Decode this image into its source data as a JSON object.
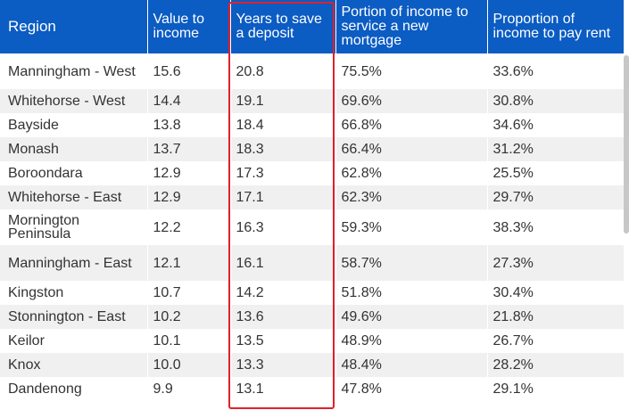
{
  "table": {
    "headers": [
      "Region",
      "Value to income",
      "Years to save a deposit",
      "Portion of income to service a new mortgage",
      "Proportion of income to pay rent"
    ],
    "rows": [
      [
        "Manningham - West",
        "15.6",
        "20.8",
        "75.5%",
        "33.6%"
      ],
      [
        "Whitehorse - West",
        "14.4",
        "19.1",
        "69.6%",
        "30.8%"
      ],
      [
        "Bayside",
        "13.8",
        "18.4",
        "66.8%",
        "34.6%"
      ],
      [
        "Monash",
        "13.7",
        "18.3",
        "66.4%",
        "31.2%"
      ],
      [
        "Boroondara",
        "12.9",
        "17.3",
        "62.8%",
        "25.5%"
      ],
      [
        "Whitehorse - East",
        "12.9",
        "17.1",
        "62.3%",
        "29.7%"
      ],
      [
        "Mornington Peninsula",
        "12.2",
        "16.3",
        "59.3%",
        "38.3%"
      ],
      [
        "Manningham - East",
        "12.1",
        "16.1",
        "58.7%",
        "27.3%"
      ],
      [
        "Kingston",
        "10.7",
        "14.2",
        "51.8%",
        "30.4%"
      ],
      [
        "Stonnington - East",
        "10.2",
        "13.6",
        "49.6%",
        "21.8%"
      ],
      [
        "Keilor",
        "10.1",
        "13.5",
        "48.9%",
        "26.7%"
      ],
      [
        "Knox",
        "10.0",
        "13.3",
        "48.4%",
        "28.2%"
      ],
      [
        "Dandenong",
        "9.9",
        "13.1",
        "47.8%",
        "29.1%"
      ]
    ]
  },
  "colors": {
    "header_bg": "#0b5cc3",
    "header_text": "#ffffff",
    "highlight": "#e0202a",
    "stripe": "#f0f0f0"
  }
}
